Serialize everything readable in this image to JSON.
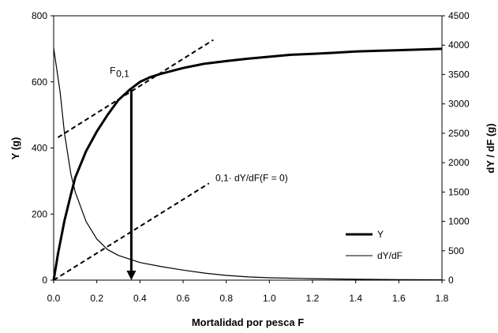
{
  "chart_data": {
    "type": "line",
    "xlabel": "Mortalidad por pesca F",
    "ylabel_left": "Y (g)",
    "ylabel_right": "dY / dF (g)",
    "xlim": [
      0.0,
      1.8
    ],
    "ylim_left": [
      0,
      800
    ],
    "ylim_right": [
      0,
      4500
    ],
    "x_ticks": [
      "0.0",
      "0.2",
      "0.4",
      "0.6",
      "0.8",
      "1.0",
      "1.2",
      "1.4",
      "1.6",
      "1.8"
    ],
    "y_left_ticks": [
      "0",
      "200",
      "400",
      "600",
      "800"
    ],
    "y_right_ticks": [
      "0",
      "500",
      "1000",
      "1500",
      "2000",
      "2500",
      "3000",
      "3500",
      "4000",
      "4500"
    ],
    "grid": false,
    "legend_position": "bottom-right",
    "series": [
      {
        "name": "Y",
        "axis": "left",
        "style": "thick",
        "x": [
          0.0,
          0.02,
          0.05,
          0.08,
          0.1,
          0.15,
          0.2,
          0.25,
          0.3,
          0.35,
          0.4,
          0.45,
          0.5,
          0.6,
          0.7,
          0.8,
          0.9,
          1.0,
          1.1,
          1.2,
          1.3,
          1.4,
          1.5,
          1.6,
          1.7,
          1.8
        ],
        "values": [
          0,
          80,
          180,
          260,
          310,
          390,
          450,
          500,
          545,
          575,
          600,
          615,
          625,
          642,
          655,
          663,
          670,
          676,
          682,
          685,
          688,
          692,
          694,
          696,
          698,
          700
        ]
      },
      {
        "name": "dY/dF",
        "axis": "right",
        "style": "thin",
        "x": [
          0.0,
          0.03,
          0.05,
          0.08,
          0.1,
          0.15,
          0.2,
          0.25,
          0.3,
          0.35,
          0.4,
          0.5,
          0.6,
          0.7,
          0.8,
          0.9,
          1.0,
          1.2,
          1.4,
          1.6,
          1.8
        ],
        "values": [
          3950,
          3200,
          2500,
          1800,
          1500,
          1000,
          700,
          520,
          420,
          360,
          300,
          230,
          170,
          120,
          80,
          55,
          40,
          25,
          15,
          8,
          5
        ]
      }
    ],
    "tangent_lines": [
      {
        "x": [
          0.02,
          0.74
        ],
        "y_left": [
          432,
          727
        ]
      },
      {
        "x": [
          0.0,
          0.72
        ],
        "y_left": [
          0,
          293
        ]
      }
    ],
    "arrow": {
      "x": 0.36,
      "from_y_left": 577,
      "to_y_left": 0
    },
    "annotations": {
      "f01_label": "F",
      "f01_sub": "0,1",
      "tangent_label": "0,1· dY/dF(F = 0)",
      "f01_label_pos": {
        "x": 0.26,
        "y_left": 625
      },
      "tangent_label_pos": {
        "x": 0.75,
        "y_left": 300
      }
    }
  }
}
